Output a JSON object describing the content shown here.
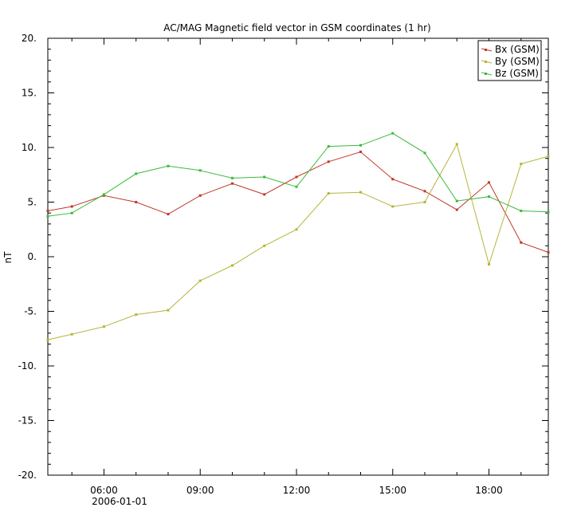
{
  "chart_data": {
    "type": "line",
    "title": "AC/MAG  Magnetic field vector in GSM coordinates (1 hr)",
    "ylabel": "nT",
    "xlabel": "",
    "ylim": [
      -20,
      20
    ],
    "y_major_ticks": [
      20,
      15,
      10,
      5,
      0,
      -5,
      -10,
      -15,
      -20
    ],
    "y_tick_labels": [
      "20.",
      "15.",
      "10.",
      "5.",
      "0.",
      "-5.",
      "-10.",
      "-15.",
      "-20."
    ],
    "xlim": [
      4.25,
      19.85
    ],
    "x_major_ticks": [
      6,
      9,
      12,
      15,
      18
    ],
    "x_tick_labels": [
      "06:00",
      "09:00",
      "12:00",
      "15:00",
      "18:00"
    ],
    "x_date_label": "2006-01-01",
    "legend_position": "top-right",
    "grid": false,
    "x": [
      4.25,
      5,
      6,
      7,
      8,
      9,
      10,
      11,
      12,
      13,
      14,
      15,
      16,
      17,
      18,
      19,
      19.85
    ],
    "series": [
      {
        "name": "Bx (GSM)",
        "color": "#c0392b",
        "values": [
          4.2,
          4.6,
          5.6,
          5.0,
          3.9,
          5.6,
          6.7,
          5.7,
          7.3,
          8.7,
          9.6,
          7.1,
          6.0,
          4.3,
          6.8,
          1.3,
          0.4
        ]
      },
      {
        "name": "By (GSM)",
        "color": "#b5b53a",
        "values": [
          -7.6,
          -7.1,
          -6.4,
          -5.3,
          -4.9,
          -2.2,
          -0.8,
          1.0,
          2.5,
          5.8,
          5.9,
          4.6,
          5.0,
          10.3,
          -0.7,
          8.5,
          9.2
        ]
      },
      {
        "name": "Bz (GSM)",
        "color": "#3cba3c",
        "values": [
          3.7,
          4.0,
          5.7,
          7.6,
          8.3,
          7.9,
          7.2,
          7.3,
          6.4,
          10.1,
          10.2,
          11.3,
          9.5,
          5.1,
          5.5,
          4.2,
          4.1
        ]
      }
    ]
  }
}
